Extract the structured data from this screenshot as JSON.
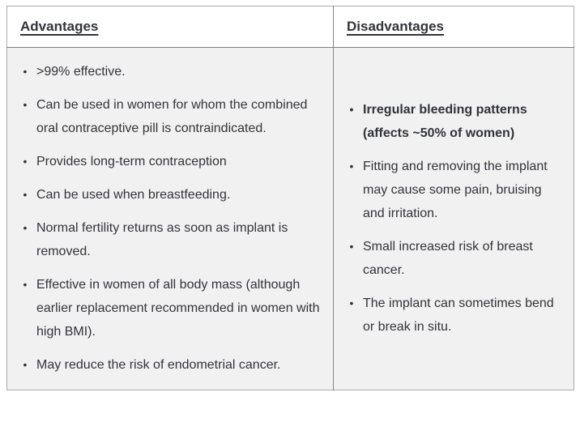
{
  "icons": {
    "bullet": "•"
  },
  "colors": {
    "text": "#33333d",
    "header_background": "#ffffff",
    "cell_background": "#f1f1f1",
    "border": "#8f8f8f"
  },
  "table": {
    "columns": [
      {
        "header": "Advantages",
        "items": [
          {
            "text": ">99% effective.",
            "bold": false
          },
          {
            "text": "Can be used in women for whom the combined oral contraceptive pill is contraindicated.",
            "bold": false
          },
          {
            "text": "Provides long-term contraception",
            "bold": false
          },
          {
            "text": "Can be used when breastfeeding.",
            "bold": false
          },
          {
            "text": "Normal fertility returns as soon as implant is removed.",
            "bold": false
          },
          {
            "text": "Effective in women of all body mass (although earlier replacement recommended in women with high BMI).",
            "bold": false
          },
          {
            "text": "May reduce the risk of endometrial cancer.",
            "bold": false
          }
        ]
      },
      {
        "header": "Disadvantages",
        "items": [
          {
            "text": "Irregular bleeding patterns (affects ~50% of women)",
            "bold": true
          },
          {
            "text": "Fitting and removing the implant may cause some pain, bruising and irritation.",
            "bold": false
          },
          {
            "text": "Small increased risk of breast cancer.",
            "bold": false
          },
          {
            "text": "The implant can sometimes bend or break in situ.",
            "bold": false
          }
        ]
      }
    ]
  }
}
